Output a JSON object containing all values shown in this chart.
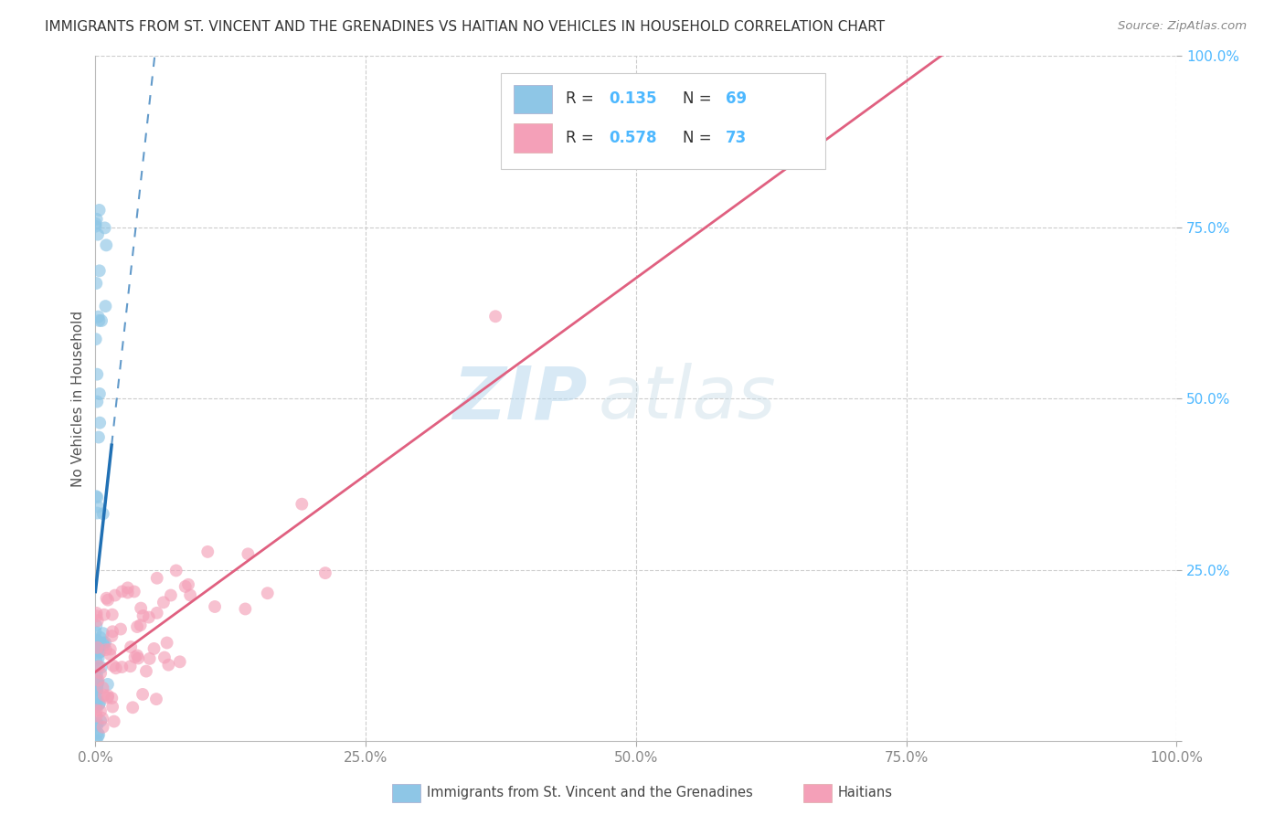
{
  "title": "IMMIGRANTS FROM ST. VINCENT AND THE GRENADINES VS HAITIAN NO VEHICLES IN HOUSEHOLD CORRELATION CHART",
  "source": "Source: ZipAtlas.com",
  "ylabel": "No Vehicles in Household",
  "legend_label_blue": "Immigrants from St. Vincent and the Grenadines",
  "legend_label_pink": "Haitians",
  "r_blue": 0.135,
  "n_blue": 69,
  "r_pink": 0.578,
  "n_pink": 73,
  "color_blue": "#8ec6e6",
  "color_pink": "#f4a0b8",
  "line_color_blue": "#2070b4",
  "line_color_pink": "#e06080",
  "watermark_zip": "ZIP",
  "watermark_atlas": "atlas",
  "xmin": 0.0,
  "xmax": 1.0,
  "ymin": 0.0,
  "ymax": 1.0,
  "xticks": [
    0.0,
    0.25,
    0.5,
    0.75,
    1.0
  ],
  "yticks": [
    0.0,
    0.25,
    0.5,
    0.75,
    1.0
  ],
  "xtick_labels": [
    "0.0%",
    "25.0%",
    "50.0%",
    "75.0%",
    "100.0%"
  ],
  "ytick_labels": [
    "",
    "25.0%",
    "50.0%",
    "75.0%",
    "100.0%"
  ],
  "grid_color": "#cccccc",
  "background": "#ffffff",
  "title_color": "#333333",
  "source_color": "#888888",
  "ylabel_color": "#555555",
  "tick_color_x": "#888888",
  "tick_color_y": "#4db8ff"
}
